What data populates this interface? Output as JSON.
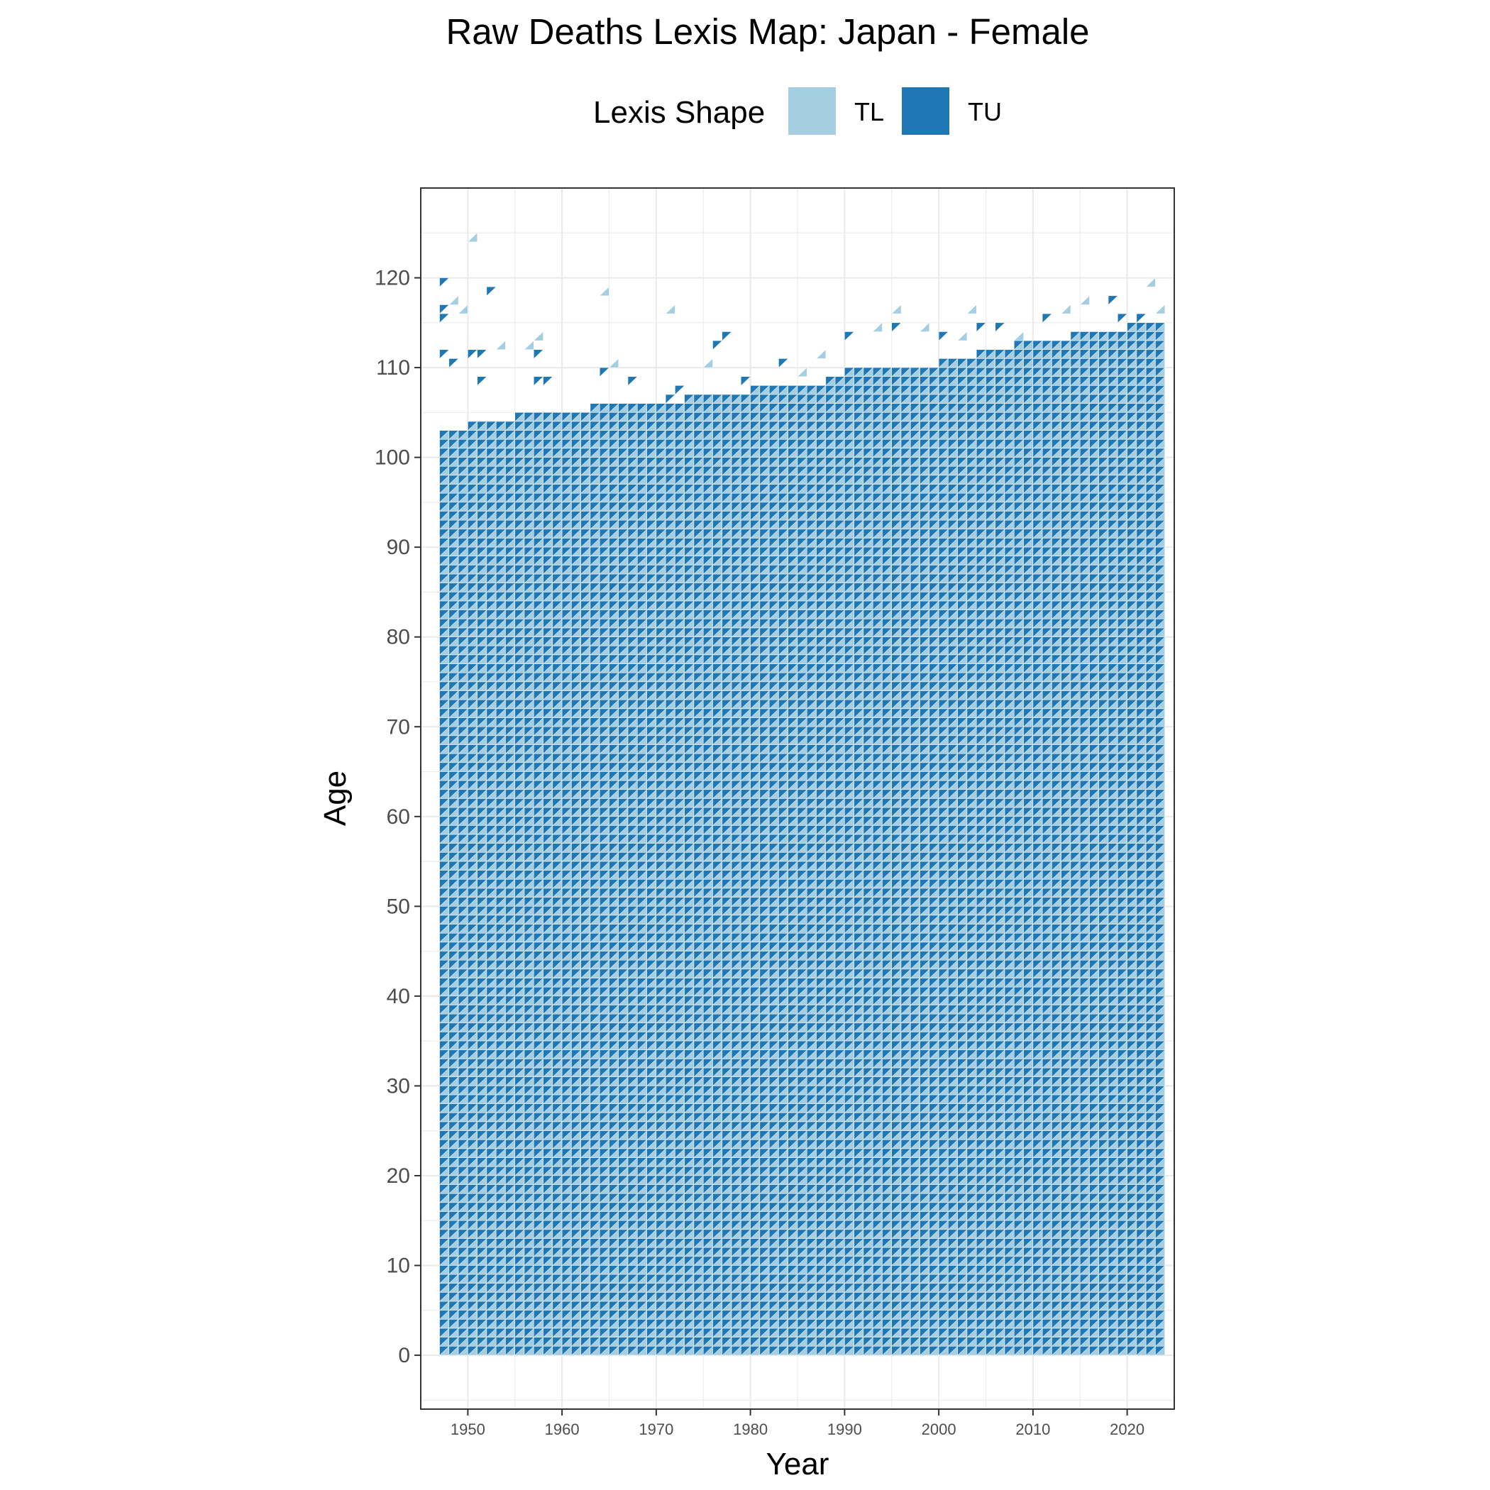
{
  "chart_data": {
    "type": "heatmap",
    "title": "Raw Deaths Lexis Map: Japan - Female",
    "xlabel": "Year",
    "ylabel": "Age",
    "xlim": [
      1945,
      2025
    ],
    "ylim": [
      -6,
      130
    ],
    "x_ticks": [
      1950,
      1960,
      1970,
      1980,
      1990,
      2000,
      2010,
      2020
    ],
    "y_ticks": [
      0,
      10,
      20,
      30,
      40,
      50,
      60,
      70,
      80,
      90,
      100,
      110,
      120
    ],
    "legend": {
      "title": "Lexis Shape",
      "position": "top",
      "entries": [
        {
          "label": "TL",
          "color": "#a6cee3"
        },
        {
          "label": "TU",
          "color": "#1f78b4"
        }
      ]
    },
    "grid": true,
    "series": [
      {
        "name": "TL",
        "description_shape": "lower Lexis triangle",
        "color": "#a6cee3"
      },
      {
        "name": "TU",
        "description_shape": "upper Lexis triangle",
        "color": "#1f78b4"
      }
    ],
    "year_range": [
      1947,
      2023
    ],
    "age_range": [
      0,
      125
    ],
    "max_full_age_by_year": [
      [
        1947,
        102
      ],
      [
        1950,
        103
      ],
      [
        1952,
        103
      ],
      [
        1955,
        104
      ],
      [
        1958,
        104
      ],
      [
        1960,
        104
      ],
      [
        1963,
        105
      ],
      [
        1966,
        105
      ],
      [
        1970,
        105
      ],
      [
        1973,
        106
      ],
      [
        1976,
        106
      ],
      [
        1980,
        107
      ],
      [
        1985,
        107
      ],
      [
        1988,
        108
      ],
      [
        1990,
        109
      ],
      [
        1993,
        109
      ],
      [
        1996,
        109
      ],
      [
        2000,
        110
      ],
      [
        2004,
        111
      ],
      [
        2008,
        112
      ],
      [
        2010,
        112
      ],
      [
        2014,
        113
      ],
      [
        2017,
        113
      ],
      [
        2020,
        114
      ],
      [
        2023,
        114
      ]
    ],
    "sparse_cells": [
      {
        "year": 1947,
        "age": 119,
        "shape": "TU"
      },
      {
        "year": 1947,
        "age": 116,
        "shape": "TU"
      },
      {
        "year": 1947,
        "age": 115,
        "shape": "TU"
      },
      {
        "year": 1948,
        "age": 117,
        "shape": "TL"
      },
      {
        "year": 1949,
        "age": 116,
        "shape": "TL"
      },
      {
        "year": 1950,
        "age": 124,
        "shape": "TL"
      },
      {
        "year": 1952,
        "age": 118,
        "shape": "TU"
      },
      {
        "year": 1947,
        "age": 111,
        "shape": "TU"
      },
      {
        "year": 1948,
        "age": 110,
        "shape": "TU"
      },
      {
        "year": 1950,
        "age": 111,
        "shape": "TU"
      },
      {
        "year": 1951,
        "age": 111,
        "shape": "TU"
      },
      {
        "year": 1951,
        "age": 108,
        "shape": "TU"
      },
      {
        "year": 1953,
        "age": 112,
        "shape": "TL"
      },
      {
        "year": 1956,
        "age": 112,
        "shape": "TL"
      },
      {
        "year": 1957,
        "age": 113,
        "shape": "TL"
      },
      {
        "year": 1957,
        "age": 111,
        "shape": "TU"
      },
      {
        "year": 1957,
        "age": 108,
        "shape": "TU"
      },
      {
        "year": 1958,
        "age": 108,
        "shape": "TU"
      },
      {
        "year": 1964,
        "age": 118,
        "shape": "TL"
      },
      {
        "year": 1964,
        "age": 109,
        "shape": "TU"
      },
      {
        "year": 1965,
        "age": 110,
        "shape": "TL"
      },
      {
        "year": 1967,
        "age": 108,
        "shape": "TU"
      },
      {
        "year": 1971,
        "age": 116,
        "shape": "TL"
      },
      {
        "year": 1971,
        "age": 106,
        "shape": "TU"
      },
      {
        "year": 1972,
        "age": 107,
        "shape": "TU"
      },
      {
        "year": 1975,
        "age": 110,
        "shape": "TL"
      },
      {
        "year": 1976,
        "age": 112,
        "shape": "TU"
      },
      {
        "year": 1977,
        "age": 113,
        "shape": "TU"
      },
      {
        "year": 1979,
        "age": 108,
        "shape": "TU"
      },
      {
        "year": 1983,
        "age": 110,
        "shape": "TU"
      },
      {
        "year": 1985,
        "age": 109,
        "shape": "TL"
      },
      {
        "year": 1987,
        "age": 111,
        "shape": "TL"
      },
      {
        "year": 1990,
        "age": 113,
        "shape": "TU"
      },
      {
        "year": 1993,
        "age": 114,
        "shape": "TL"
      },
      {
        "year": 1995,
        "age": 116,
        "shape": "TL"
      },
      {
        "year": 1995,
        "age": 114,
        "shape": "TU"
      },
      {
        "year": 1998,
        "age": 114,
        "shape": "TL"
      },
      {
        "year": 2000,
        "age": 113,
        "shape": "TU"
      },
      {
        "year": 2002,
        "age": 113,
        "shape": "TL"
      },
      {
        "year": 2003,
        "age": 116,
        "shape": "TL"
      },
      {
        "year": 2004,
        "age": 114,
        "shape": "TU"
      },
      {
        "year": 2006,
        "age": 114,
        "shape": "TU"
      },
      {
        "year": 2008,
        "age": 113,
        "shape": "TL"
      },
      {
        "year": 2011,
        "age": 115,
        "shape": "TU"
      },
      {
        "year": 2013,
        "age": 116,
        "shape": "TL"
      },
      {
        "year": 2015,
        "age": 117,
        "shape": "TL"
      },
      {
        "year": 2017,
        "age": 113,
        "shape": "TU"
      },
      {
        "year": 2018,
        "age": 117,
        "shape": "TU"
      },
      {
        "year": 2019,
        "age": 115,
        "shape": "TU"
      },
      {
        "year": 2021,
        "age": 115,
        "shape": "TU"
      },
      {
        "year": 2022,
        "age": 119,
        "shape": "TL"
      },
      {
        "year": 2023,
        "age": 116,
        "shape": "TL"
      }
    ]
  }
}
